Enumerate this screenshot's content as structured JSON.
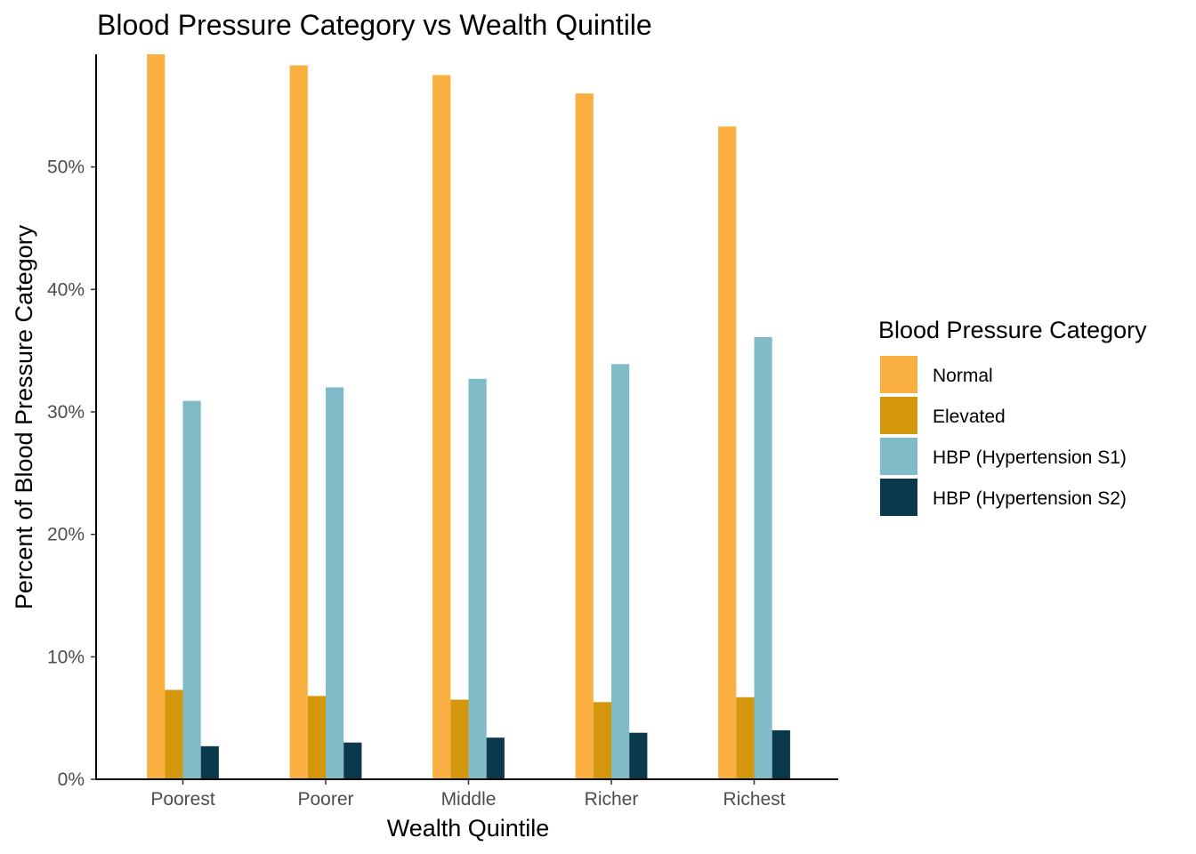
{
  "chart_data": {
    "type": "bar",
    "title": "Blood Pressure Category vs Wealth Quintile",
    "xlabel": "Wealth Quintile",
    "ylabel": "Percent of Blood Pressure Category",
    "categories": [
      "Poorest",
      "Poorer",
      "Middle",
      "Richer",
      "Richest"
    ],
    "y_ticks": [
      "0%",
      "10%",
      "20%",
      "30%",
      "40%",
      "50%"
    ],
    "y_tick_values": [
      0,
      10,
      20,
      30,
      40,
      50
    ],
    "ylim": [
      0,
      59.2
    ],
    "y_unit": "%",
    "grid": false,
    "legend": {
      "title": "Blood Pressure Category",
      "placement": "right"
    },
    "series": [
      {
        "name": "Normal",
        "color": "#f9b040",
        "values": [
          59.2,
          58.3,
          57.5,
          56.0,
          53.3
        ]
      },
      {
        "name": "Elevated",
        "color": "#d4960c",
        "values": [
          7.3,
          6.8,
          6.5,
          6.3,
          6.7
        ]
      },
      {
        "name": "HBP (Hypertension S1)",
        "color": "#80bbc8",
        "values": [
          30.9,
          32.0,
          32.7,
          33.9,
          36.1
        ]
      },
      {
        "name": "HBP (Hypertension S2)",
        "color": "#0b394c",
        "values": [
          2.7,
          3.0,
          3.4,
          3.8,
          4.0
        ]
      }
    ]
  }
}
